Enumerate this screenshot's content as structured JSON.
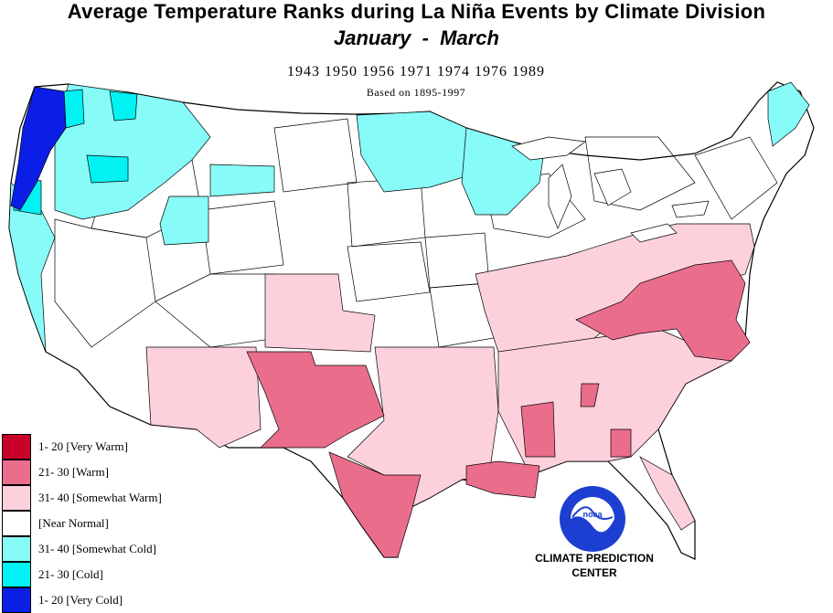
{
  "header": {
    "title": "Average Temperature Ranks during La  Niña Events by Climate Division",
    "subtitle": "January  -  March",
    "years": "1943  1950  1956  1971  1974  1976  1989",
    "basis": "Based on 1895-1997"
  },
  "legend": {
    "items": [
      {
        "label": "1- 20 [Very Warm]",
        "color": "#c8002a"
      },
      {
        "label": "21- 30 [Warm]",
        "color": "#ea6d8c"
      },
      {
        "label": "31- 40 [Somewhat Warm]",
        "color": "#fdd1dc"
      },
      {
        "label": " [Near Normal]",
        "color": "#ffffff"
      },
      {
        "label": "31- 40 [Somewhat Cold]",
        "color": "#87fbf8"
      },
      {
        "label": "21- 30 [Cold]",
        "color": "#00f2f2"
      },
      {
        "label": "1- 20 [Very Cold]",
        "color": "#0a1ee6"
      }
    ]
  },
  "credit": {
    "logo_text": "noaa",
    "line1": "CLIMATE PREDICTION",
    "line2": "CENTER"
  },
  "colors": {
    "very_warm": "#c8002a",
    "warm": "#ea6d8c",
    "somewhat_warm": "#fdd1dc",
    "near_normal": "#ffffff",
    "somewhat_cold": "#87fbf8",
    "cold": "#00f2f2",
    "very_cold": "#0a1ee6"
  }
}
